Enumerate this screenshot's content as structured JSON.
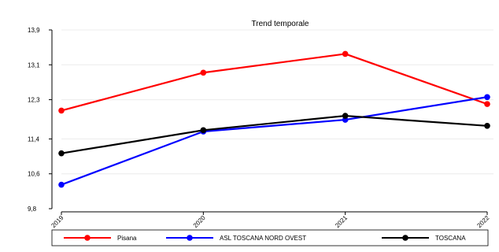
{
  "chart_data": {
    "type": "line",
    "title": "Trend temporale",
    "categories": [
      "2019",
      "2020",
      "2021",
      "2022"
    ],
    "ylim": [
      9.8,
      13.9
    ],
    "yticks": [
      "9,8",
      "10,6",
      "11,4",
      "12,3",
      "13,1",
      "13,9"
    ],
    "ytick_values": [
      9.8,
      10.6,
      11.4,
      12.3,
      13.1,
      13.9
    ],
    "grid": true,
    "legend_position": "bottom",
    "series": [
      {
        "name": "Pisana",
        "color": "#ff0000",
        "values": [
          12.05,
          12.92,
          13.35,
          12.2
        ]
      },
      {
        "name": "ASL TOSCANA NORD OVEST",
        "color": "#0000ff",
        "values": [
          10.35,
          11.57,
          11.84,
          12.36
        ]
      },
      {
        "name": "TOSCANA",
        "color": "#000000",
        "values": [
          11.07,
          11.6,
          11.93,
          11.7
        ]
      }
    ]
  }
}
